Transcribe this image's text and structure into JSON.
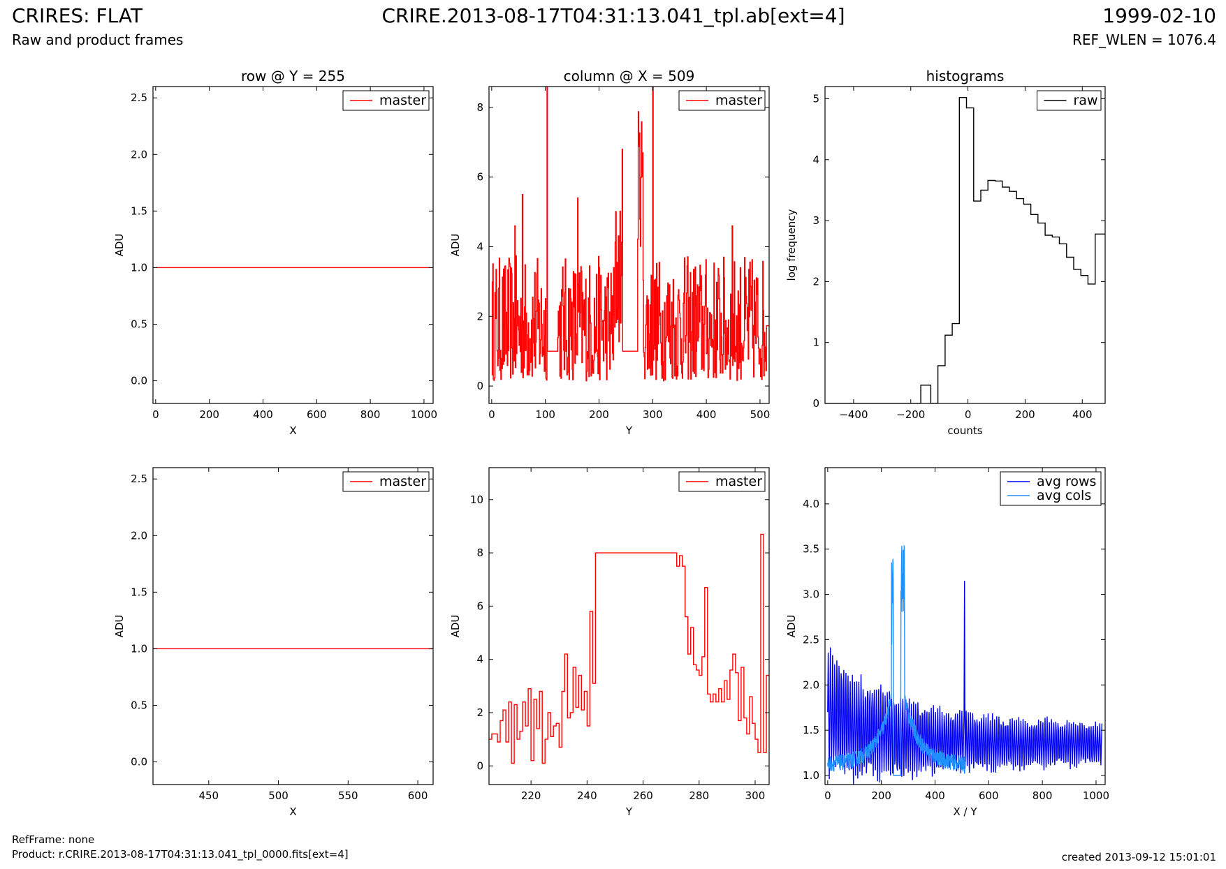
{
  "header": {
    "title_left": "CRIRES: FLAT",
    "subtitle_left": "Raw and product frames",
    "title_center": "CRIRE.2013-08-17T04:31:13.041_tpl.ab[ext=4]",
    "title_right": "1999-02-10",
    "subtitle_right": "REF_WLEN = 1076.4"
  },
  "footer": {
    "ref_frame": "RefFrame: none",
    "product": "Product: r.CRIRE.2013-08-17T04:31:13.041_tpl_0000.fits[ext=4]",
    "created": "created 2013-09-12 15:01:01"
  },
  "colors": {
    "master": "#ff0000",
    "raw": "#000000",
    "avg_rows": "#0000ff",
    "avg_cols": "#1e90ff"
  },
  "chart_data": [
    {
      "id": "p1",
      "type": "line",
      "title": "row @ Y = 255",
      "xlabel": "X",
      "ylabel": "ADU",
      "xlim": [
        -10,
        1034
      ],
      "ylim": [
        -0.2,
        2.6
      ],
      "xticks": [
        0,
        200,
        400,
        600,
        800,
        1000
      ],
      "xtick_labels": [
        "0",
        "200",
        "400",
        "600",
        "800",
        "1000"
      ],
      "yticks": [
        0,
        0.5,
        1,
        1.5,
        2,
        2.5
      ],
      "ytick_labels": [
        "0.0",
        "0.5",
        "1.0",
        "1.5",
        "2.0",
        "2.5"
      ],
      "legend": "top-right",
      "series": [
        {
          "name": "master",
          "color": "#ff0000",
          "step": false,
          "x": [
            0,
            1023
          ],
          "y": [
            1.0,
            1.0
          ]
        }
      ]
    },
    {
      "id": "p2",
      "type": "line",
      "title": "column @ X = 509",
      "xlabel": "Y",
      "ylabel": "ADU",
      "xlim": [
        -5,
        517
      ],
      "ylim": [
        -0.5,
        8.6
      ],
      "xticks": [
        0,
        100,
        200,
        300,
        400,
        500
      ],
      "xtick_labels": [
        "0",
        "100",
        "200",
        "300",
        "400",
        "500"
      ],
      "yticks": [
        0,
        2,
        4,
        6,
        8
      ],
      "ytick_labels": [
        "0",
        "2",
        "4",
        "6",
        "8"
      ],
      "legend": "top-right",
      "series": [
        {
          "name": "master",
          "color": "#ff0000",
          "step": true,
          "gen": "col_full",
          "x": [],
          "y": []
        }
      ]
    },
    {
      "id": "p3",
      "type": "line",
      "title": "histograms",
      "xlabel": "counts",
      "ylabel": "log frequency",
      "xlim": [
        -500,
        480
      ],
      "ylim": [
        0,
        5.2
      ],
      "xticks": [
        -400,
        -200,
        0,
        200,
        400
      ],
      "xtick_labels": [
        "−400",
        "−200",
        "0",
        "200",
        "400"
      ],
      "yticks": [
        0,
        1,
        2,
        3,
        4,
        5
      ],
      "ytick_labels": [
        "0",
        "1",
        "2",
        "3",
        "4",
        "5"
      ],
      "legend": "top-right",
      "series": [
        {
          "name": "raw",
          "color": "#000000",
          "step": true,
          "x": [
            -500,
            -190,
            -165,
            -130,
            -105,
            -80,
            -55,
            -30,
            -5,
            20,
            45,
            70,
            95,
            120,
            145,
            170,
            195,
            220,
            245,
            270,
            295,
            320,
            345,
            370,
            395,
            420,
            445
          ],
          "y": [
            0,
            0,
            0.3,
            0,
            0.62,
            1.12,
            1.31,
            5.02,
            4.85,
            3.32,
            3.5,
            3.66,
            3.65,
            3.55,
            3.48,
            3.36,
            3.27,
            3.1,
            2.96,
            2.76,
            2.73,
            2.62,
            2.4,
            2.2,
            2.1,
            1.96,
            2.78
          ]
        }
      ]
    },
    {
      "id": "p4",
      "type": "line",
      "title": "",
      "xlabel": "X",
      "ylabel": "ADU",
      "xlim": [
        410,
        611
      ],
      "ylim": [
        -0.2,
        2.6
      ],
      "xticks": [
        450,
        500,
        550,
        600
      ],
      "xtick_labels": [
        "450",
        "500",
        "550",
        "600"
      ],
      "yticks": [
        0,
        0.5,
        1,
        1.5,
        2,
        2.5
      ],
      "ytick_labels": [
        "0.0",
        "0.5",
        "1.0",
        "1.5",
        "2.0",
        "2.5"
      ],
      "legend": "top-right",
      "series": [
        {
          "name": "master",
          "color": "#ff0000",
          "step": false,
          "x": [
            410,
            611
          ],
          "y": [
            1.0,
            1.0
          ]
        }
      ]
    },
    {
      "id": "p5",
      "type": "line",
      "title": "",
      "xlabel": "Y",
      "ylabel": "ADU",
      "xlim": [
        205,
        305
      ],
      "ylim": [
        -0.7,
        11.2
      ],
      "xticks": [
        220,
        240,
        260,
        280,
        300
      ],
      "xtick_labels": [
        "220",
        "240",
        "260",
        "280",
        "300"
      ],
      "yticks": [
        0,
        2,
        4,
        6,
        8,
        10
      ],
      "ytick_labels": [
        "0",
        "2",
        "4",
        "6",
        "8",
        "10"
      ],
      "legend": "top-right",
      "series": [
        {
          "name": "master",
          "color": "#ff0000",
          "step": true,
          "x": [
            205,
            206,
            207,
            208,
            209,
            210,
            211,
            212,
            213,
            214,
            215,
            216,
            217,
            218,
            219,
            220,
            221,
            222,
            223,
            224,
            225,
            226,
            227,
            228,
            229,
            230,
            231,
            232,
            233,
            234,
            235,
            236,
            237,
            238,
            239,
            240,
            241,
            242,
            243,
            272,
            273,
            274,
            275,
            276,
            277,
            278,
            279,
            280,
            281,
            282,
            283,
            284,
            285,
            286,
            287,
            288,
            289,
            290,
            291,
            292,
            293,
            294,
            295,
            296,
            297,
            298,
            299,
            300,
            301,
            302,
            303,
            304
          ],
          "y": [
            1.0,
            1.2,
            1.2,
            0.9,
            1.7,
            2.1,
            0.9,
            2.4,
            0.1,
            2.3,
            1.0,
            1.3,
            2.4,
            1.5,
            2.9,
            0.2,
            2.5,
            1.4,
            2.8,
            0.1,
            1.0,
            2.0,
            1.1,
            1.5,
            1.6,
            0.7,
            2.8,
            4.2,
            1.8,
            2.0,
            3.7,
            2.2,
            3.4,
            2.1,
            2.8,
            1.5,
            5.8,
            3.1,
            8.0,
            7.5,
            7.9,
            7.5,
            5.6,
            4.2,
            5.2,
            3.8,
            3.6,
            3.4,
            4.1,
            6.7,
            2.7,
            2.4,
            2.7,
            2.4,
            2.9,
            2.4,
            3.2,
            2.5,
            3.6,
            4.2,
            3.5,
            1.7,
            3.7,
            1.8,
            1.2,
            2.6,
            1.6,
            1.0,
            0.5,
            8.7,
            0.5,
            3.4
          ]
        }
      ]
    },
    {
      "id": "p6",
      "type": "line",
      "title": "",
      "xlabel": "X / Y",
      "ylabel": "ADU",
      "xlim": [
        -10,
        1034
      ],
      "ylim": [
        0.9,
        4.4
      ],
      "xticks": [
        0,
        200,
        400,
        600,
        800,
        1000
      ],
      "xtick_labels": [
        "0",
        "200",
        "400",
        "600",
        "800",
        "1000"
      ],
      "yticks": [
        1,
        1.5,
        2,
        2.5,
        3,
        3.5,
        4
      ],
      "ytick_labels": [
        "1.0",
        "1.5",
        "2.0",
        "2.5",
        "3.0",
        "3.5",
        "4.0"
      ],
      "legend": "top-right",
      "series": [
        {
          "name": "avg rows",
          "color": "#0000ff",
          "step": false,
          "gen": "avg_rows",
          "x": [],
          "y": []
        },
        {
          "name": "avg cols",
          "color": "#1e90ff",
          "step": false,
          "gen": "avg_cols",
          "x": [],
          "y": []
        }
      ]
    }
  ]
}
